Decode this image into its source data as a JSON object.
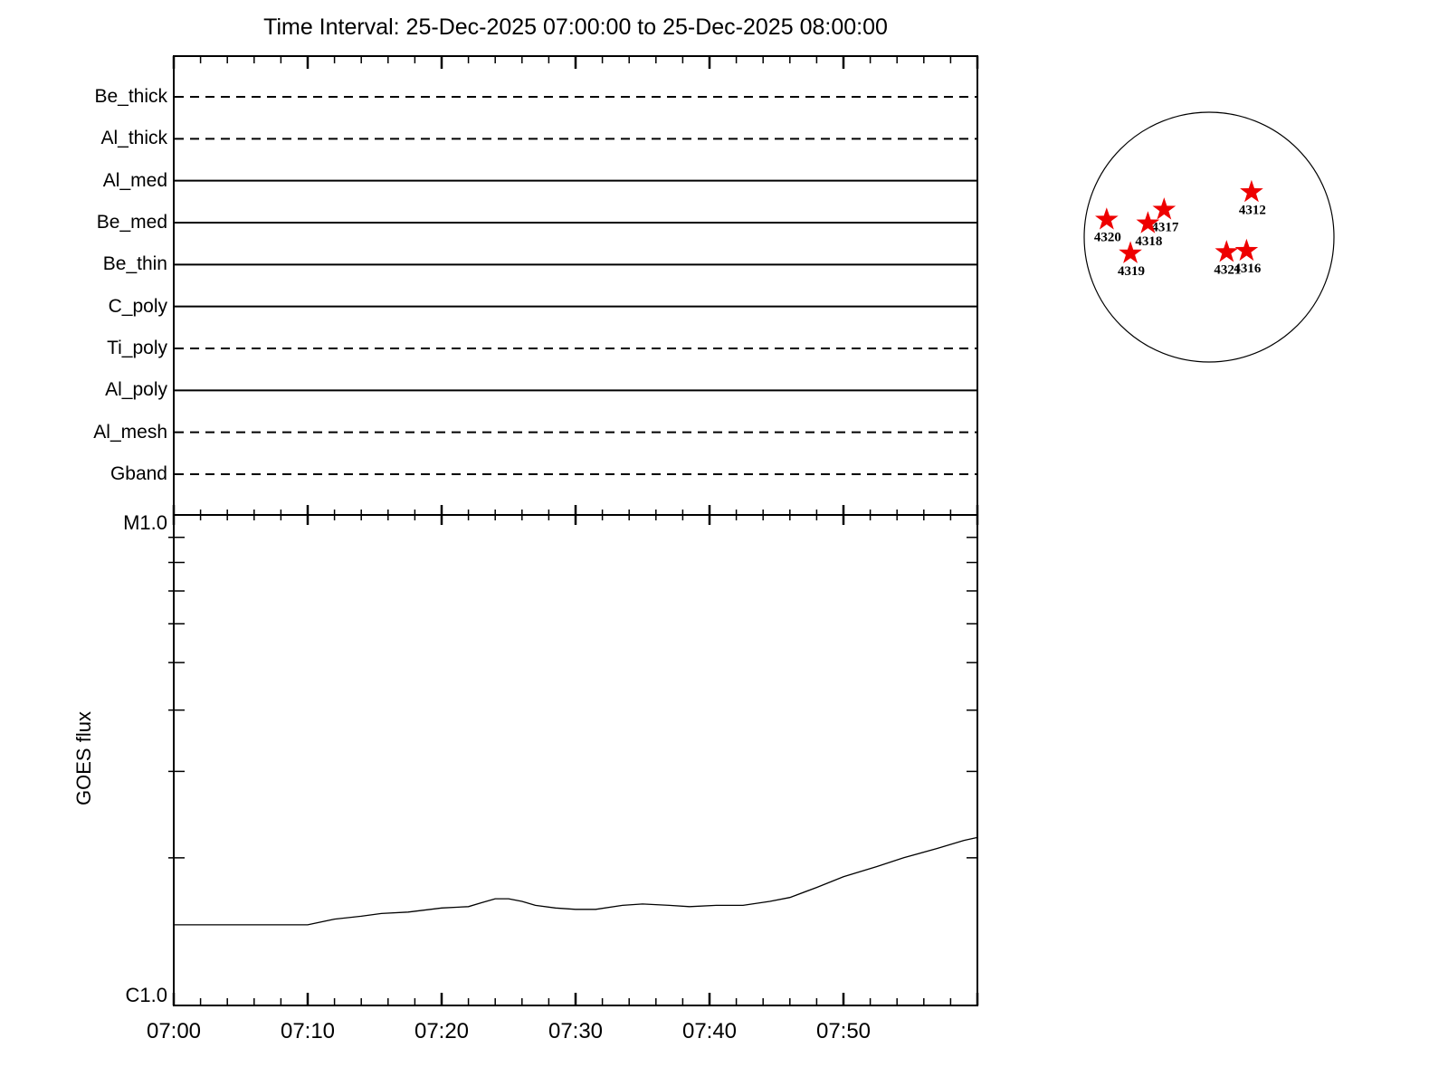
{
  "title": "Time Interval: 25-Dec-2025 07:00:00 to 25-Dec-2025 08:00:00",
  "colors": {
    "foreground": "#000000",
    "background": "#ffffff",
    "star": "#ee0000"
  },
  "filter_panel": {
    "filters": [
      {
        "label": "Be_thick",
        "linestyle": "dashed"
      },
      {
        "label": "Al_thick",
        "linestyle": "dashed"
      },
      {
        "label": "Al_med",
        "linestyle": "solid"
      },
      {
        "label": "Be_med",
        "linestyle": "solid"
      },
      {
        "label": "Be_thin",
        "linestyle": "solid"
      },
      {
        "label": "C_poly",
        "linestyle": "solid"
      },
      {
        "label": "Ti_poly",
        "linestyle": "dashed"
      },
      {
        "label": "Al_poly",
        "linestyle": "solid"
      },
      {
        "label": "Al_mesh",
        "linestyle": "dashed"
      },
      {
        "label": "Gband",
        "linestyle": "dashed"
      }
    ]
  },
  "goes_panel": {
    "ylabel": "GOES flux",
    "y_top_label": "M1.0",
    "y_bottom_label": "C1.0",
    "xtick_labels": [
      "07:00",
      "07:10",
      "07:20",
      "07:30",
      "07:40",
      "07:50"
    ],
    "xtick_minutes": [
      0,
      10,
      20,
      30,
      40,
      50
    ]
  },
  "sun_map": {
    "marker": "star",
    "active_regions": [
      {
        "noaa": "4312",
        "disk_x": 0.34,
        "disk_y": -0.36
      },
      {
        "noaa": "4316",
        "disk_x": 0.3,
        "disk_y": 0.11
      },
      {
        "noaa": "4317",
        "disk_x": -0.36,
        "disk_y": -0.22
      },
      {
        "noaa": "4318",
        "disk_x": -0.49,
        "disk_y": -0.11
      },
      {
        "noaa": "4319",
        "disk_x": -0.63,
        "disk_y": 0.13
      },
      {
        "noaa": "4320",
        "disk_x": -0.82,
        "disk_y": -0.14
      },
      {
        "noaa": "4321",
        "disk_x": 0.14,
        "disk_y": 0.12
      }
    ]
  },
  "chart_data": [
    {
      "type": "line",
      "id": "filter-timeline",
      "x_start_label": "07:00",
      "x_end_label": "08:00",
      "x_range_minutes": [
        0,
        60
      ],
      "major_tick_minutes": 10,
      "minor_tick_minutes": 2,
      "categories": [
        "Be_thick",
        "Al_thick",
        "Al_med",
        "Be_med",
        "Be_thin",
        "C_poly",
        "Ti_poly",
        "Al_poly",
        "Al_mesh",
        "Gband"
      ],
      "series": [
        {
          "name": "Be_thick",
          "linestyle": "dashed",
          "coverage_minutes": [
            0,
            60
          ]
        },
        {
          "name": "Al_thick",
          "linestyle": "dashed",
          "coverage_minutes": [
            0,
            60
          ]
        },
        {
          "name": "Al_med",
          "linestyle": "solid",
          "coverage_minutes": [
            0,
            60
          ]
        },
        {
          "name": "Be_med",
          "linestyle": "solid",
          "coverage_minutes": [
            0,
            60
          ]
        },
        {
          "name": "Be_thin",
          "linestyle": "solid",
          "coverage_minutes": [
            0,
            60
          ]
        },
        {
          "name": "C_poly",
          "linestyle": "solid",
          "coverage_minutes": [
            0,
            60
          ]
        },
        {
          "name": "Ti_poly",
          "linestyle": "dashed",
          "coverage_minutes": [
            0,
            60
          ]
        },
        {
          "name": "Al_poly",
          "linestyle": "solid",
          "coverage_minutes": [
            0,
            60
          ]
        },
        {
          "name": "Al_mesh",
          "linestyle": "dashed",
          "coverage_minutes": [
            0,
            60
          ]
        },
        {
          "name": "Gband",
          "linestyle": "dashed",
          "coverage_minutes": [
            0,
            60
          ]
        }
      ]
    },
    {
      "type": "line",
      "id": "goes-flux",
      "ylabel": "GOES flux",
      "yscale": "log",
      "ylim": [
        1e-06,
        1e-05
      ],
      "ylim_labels": [
        "C1.0",
        "M1.0"
      ],
      "x_range_minutes": [
        0,
        60
      ],
      "x_minutes": [
        0,
        2,
        4,
        6,
        8,
        10,
        12,
        14,
        15.5,
        17.5,
        20,
        22,
        23,
        24,
        25,
        26,
        27,
        28.5,
        30,
        31.5,
        33.5,
        35,
        37,
        38.5,
        40.5,
        42.5,
        44.5,
        46,
        48,
        50,
        52.5,
        54.5,
        57,
        59,
        60
      ],
      "flux_wm2": [
        1.46e-06,
        1.46e-06,
        1.46e-06,
        1.46e-06,
        1.46e-06,
        1.46e-06,
        1.5e-06,
        1.52e-06,
        1.54e-06,
        1.55e-06,
        1.58e-06,
        1.59e-06,
        1.62e-06,
        1.65e-06,
        1.65e-06,
        1.63e-06,
        1.6e-06,
        1.58e-06,
        1.57e-06,
        1.57e-06,
        1.6e-06,
        1.61e-06,
        1.6e-06,
        1.59e-06,
        1.6e-06,
        1.6e-06,
        1.63e-06,
        1.66e-06,
        1.74e-06,
        1.83e-06,
        1.92e-06,
        2e-06,
        2.09e-06,
        2.17e-06,
        2.2e-06
      ]
    }
  ]
}
